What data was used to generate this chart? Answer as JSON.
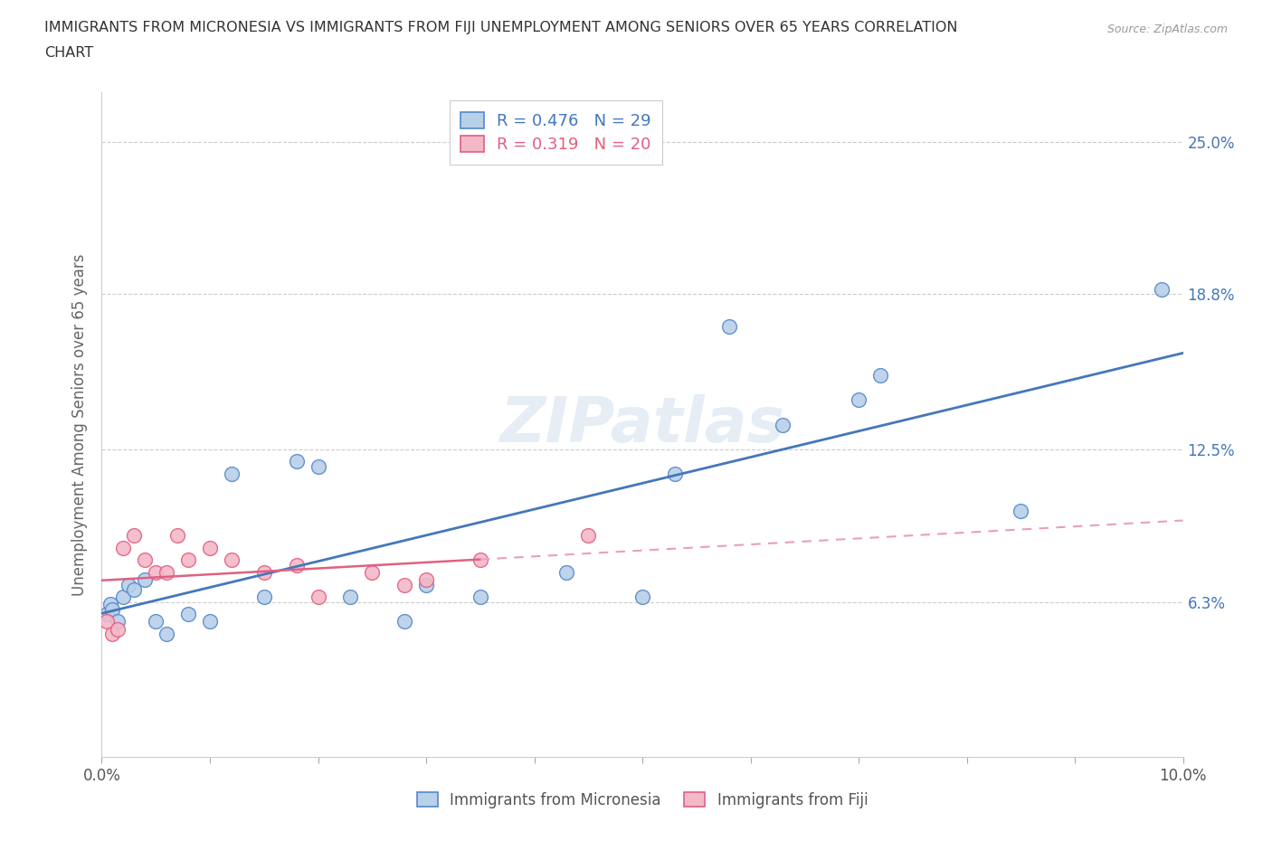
{
  "title_line1": "IMMIGRANTS FROM MICRONESIA VS IMMIGRANTS FROM FIJI UNEMPLOYMENT AMONG SENIORS OVER 65 YEARS CORRELATION",
  "title_line2": "CHART",
  "source": "Source: ZipAtlas.com",
  "ylabel": "Unemployment Among Seniors over 65 years",
  "xmin": 0.0,
  "xmax": 10.0,
  "ymin": 0.0,
  "ymax": 27.0,
  "ytick_vals": [
    6.3,
    12.5,
    18.8,
    25.0
  ],
  "ytick_labels": [
    "6.3%",
    "12.5%",
    "18.8%",
    "25.0%"
  ],
  "xtick_vals": [
    0.0,
    1.0,
    2.0,
    3.0,
    4.0,
    5.0,
    6.0,
    7.0,
    8.0,
    9.0,
    10.0
  ],
  "xtick_labels": [
    "0.0%",
    "",
    "",
    "",
    "",
    "",
    "",
    "",
    "",
    "",
    "10.0%"
  ],
  "series_micronesia": {
    "label": "Immigrants from Micronesia",
    "color": "#b8d0e8",
    "edge_color": "#5588cc",
    "R": 0.476,
    "N": 29,
    "x": [
      0.05,
      0.08,
      0.1,
      0.15,
      0.2,
      0.25,
      0.3,
      0.4,
      0.5,
      0.6,
      0.8,
      1.0,
      1.2,
      1.5,
      1.8,
      2.0,
      2.3,
      2.8,
      3.0,
      3.5,
      4.3,
      5.0,
      5.3,
      5.8,
      6.3,
      7.0,
      7.2,
      8.5,
      9.8
    ],
    "y": [
      5.8,
      6.2,
      6.0,
      5.5,
      6.5,
      7.0,
      6.8,
      7.2,
      5.5,
      5.0,
      5.8,
      5.5,
      11.5,
      6.5,
      12.0,
      11.8,
      6.5,
      5.5,
      7.0,
      6.5,
      7.5,
      6.5,
      11.5,
      17.5,
      13.5,
      14.5,
      15.5,
      10.0,
      19.0
    ]
  },
  "series_fiji": {
    "label": "Immigrants from Fiji",
    "color": "#f4b8c8",
    "edge_color": "#e06080",
    "R": 0.319,
    "N": 20,
    "x": [
      0.05,
      0.1,
      0.15,
      0.2,
      0.3,
      0.4,
      0.5,
      0.6,
      0.7,
      0.8,
      1.0,
      1.2,
      1.5,
      1.8,
      2.0,
      2.5,
      2.8,
      3.0,
      3.5,
      4.5
    ],
    "y": [
      5.5,
      5.0,
      5.2,
      8.5,
      9.0,
      8.0,
      7.5,
      7.5,
      9.0,
      8.0,
      8.5,
      8.0,
      7.5,
      7.8,
      6.5,
      7.5,
      7.0,
      7.2,
      8.0,
      9.0
    ]
  },
  "trend_micronesia_color": "#4477bb",
  "trend_fiji_solid_color": "#e06080",
  "trend_fiji_dash_color": "#e8a0b8",
  "fiji_trend_split_x": 3.5,
  "watermark": "ZIPatlas",
  "background_color": "#ffffff",
  "grid_color": "#cccccc",
  "title_color": "#333333",
  "axis_label_color": "#666666",
  "right_tick_color": "#4477bb"
}
